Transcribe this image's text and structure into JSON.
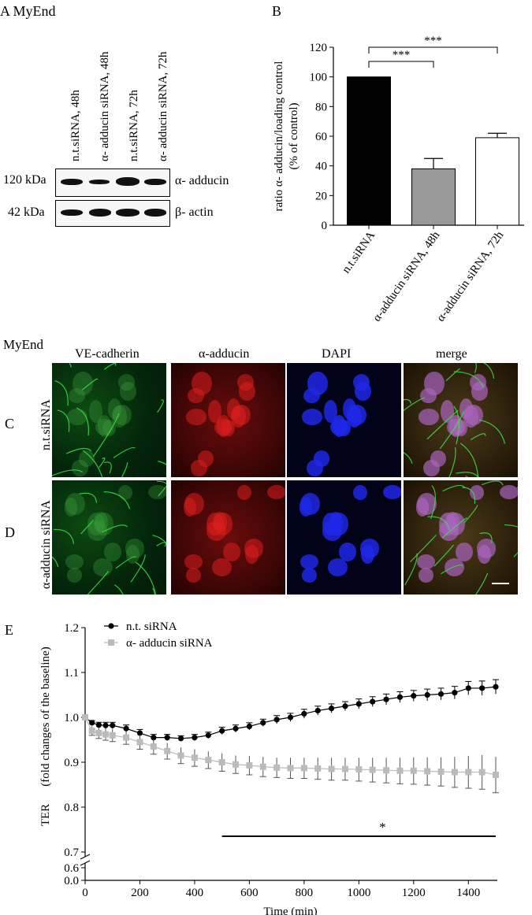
{
  "panelA": {
    "letter": "A",
    "title": "MyEnd",
    "lanes": [
      "n.t.siRNA, 48h",
      "α- adducin siRNA, 48h",
      "n.t.siRNA, 72h",
      "α- adducin siRNA, 72h"
    ],
    "rows": [
      {
        "mw": "120 kDa",
        "protein": "α- adducin",
        "intensity": [
          0.8,
          0.45,
          1.0,
          0.7
        ]
      },
      {
        "mw": "42 kDa",
        "protein": "β- actin",
        "intensity": [
          0.8,
          0.95,
          0.9,
          0.95
        ]
      }
    ]
  },
  "panelC_D": {
    "title": "MyEnd",
    "columns": [
      "VE-cadherin",
      "α-adducin",
      "DAPI",
      "merge"
    ],
    "rows": [
      {
        "letter": "C",
        "label": "n.t.siRNA"
      },
      {
        "letter": "D",
        "label": "α-adducin siRNA"
      }
    ]
  },
  "chart_data": [
    {
      "panel": "B",
      "type": "bar",
      "categories": [
        "n.t.siRNA",
        "α-adducin siRNA, 48h",
        "α-adducin siRNA, 72h"
      ],
      "values": [
        100,
        38,
        59
      ],
      "errors": [
        0,
        7,
        3
      ],
      "colors": [
        "#000000",
        "#999999",
        "#ffffff"
      ],
      "ylabel": "ratio α- adducin/loading control",
      "ylabel2": "(% of control)",
      "ylim": [
        0,
        120
      ],
      "yticks": [
        0,
        20,
        40,
        60,
        80,
        100,
        120
      ],
      "significance": [
        {
          "from": 0,
          "to": 1,
          "label": "***"
        },
        {
          "from": 0,
          "to": 2,
          "label": "***"
        }
      ]
    },
    {
      "panel": "E",
      "type": "line",
      "xlabel": "Time (min)",
      "ylabel": "TER",
      "ylabel2": "(fold changes of the baseline)",
      "xlim": [
        0,
        1500
      ],
      "xticks": [
        0,
        200,
        400,
        600,
        800,
        1000,
        1200,
        1400
      ],
      "yticks_upper": [
        "1.2",
        "1.1",
        "1.0",
        "0.9",
        "0.8",
        "0.7"
      ],
      "yticks_lower": [
        "0.6",
        "0.0"
      ],
      "ylim_upper": [
        0.7,
        1.2
      ],
      "series": [
        {
          "name": "n.t. siRNA",
          "color": "#000000",
          "marker": "circle",
          "x": [
            0,
            25,
            50,
            75,
            100,
            150,
            200,
            250,
            300,
            350,
            400,
            450,
            500,
            550,
            600,
            650,
            700,
            750,
            800,
            850,
            900,
            950,
            1000,
            1050,
            1100,
            1150,
            1200,
            1250,
            1300,
            1350,
            1400,
            1450,
            1500
          ],
          "y": [
            1.0,
            0.988,
            0.983,
            0.982,
            0.982,
            0.975,
            0.965,
            0.955,
            0.955,
            0.953,
            0.955,
            0.96,
            0.97,
            0.975,
            0.98,
            0.988,
            0.995,
            1.0,
            1.008,
            1.015,
            1.02,
            1.025,
            1.03,
            1.035,
            1.04,
            1.045,
            1.048,
            1.05,
            1.052,
            1.055,
            1.065,
            1.065,
            1.068
          ],
          "err": [
            0,
            0.005,
            0.006,
            0.007,
            0.007,
            0.008,
            0.008,
            0.007,
            0.007,
            0.006,
            0.007,
            0.007,
            0.008,
            0.008,
            0.008,
            0.008,
            0.009,
            0.009,
            0.01,
            0.01,
            0.01,
            0.01,
            0.011,
            0.011,
            0.012,
            0.012,
            0.012,
            0.013,
            0.013,
            0.014,
            0.015,
            0.016,
            0.016
          ]
        },
        {
          "name": "α- adducin siRNA",
          "color": "#bbbbbb",
          "marker": "square",
          "x": [
            0,
            25,
            50,
            75,
            100,
            150,
            200,
            250,
            300,
            350,
            400,
            450,
            500,
            550,
            600,
            650,
            700,
            750,
            800,
            850,
            900,
            950,
            1000,
            1050,
            1100,
            1150,
            1200,
            1250,
            1300,
            1350,
            1400,
            1450,
            1500
          ],
          "y": [
            1.0,
            0.97,
            0.965,
            0.962,
            0.96,
            0.955,
            0.945,
            0.935,
            0.925,
            0.915,
            0.91,
            0.905,
            0.9,
            0.895,
            0.893,
            0.89,
            0.888,
            0.887,
            0.887,
            0.886,
            0.885,
            0.885,
            0.884,
            0.883,
            0.882,
            0.881,
            0.881,
            0.88,
            0.879,
            0.878,
            0.878,
            0.878,
            0.872
          ],
          "err": [
            0,
            0.01,
            0.012,
            0.013,
            0.014,
            0.015,
            0.016,
            0.017,
            0.018,
            0.018,
            0.019,
            0.019,
            0.02,
            0.02,
            0.021,
            0.022,
            0.022,
            0.023,
            0.023,
            0.024,
            0.025,
            0.025,
            0.026,
            0.027,
            0.028,
            0.029,
            0.03,
            0.031,
            0.032,
            0.034,
            0.036,
            0.038,
            0.04
          ]
        }
      ],
      "significance": {
        "from": 500,
        "to": 1500,
        "label": "*"
      }
    }
  ]
}
